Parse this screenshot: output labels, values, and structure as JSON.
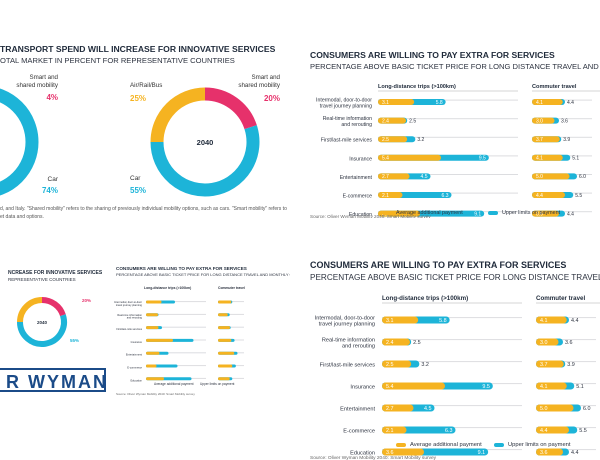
{
  "colors": {
    "orange": "#f5b321",
    "cyan": "#1db4d8",
    "pink": "#e6316b",
    "track": "#dcdde0",
    "navy": "#1b4b88"
  },
  "left_top": {
    "title": "TRANSPORT SPEND WILL INCREASE FOR INNOVATIVE SERVICES",
    "subtitle": "OTAL MARKET IN PERCENT FOR REPRESENTATIVE COUNTRIES",
    "donut1": {
      "label_a": "Smart and",
      "label_b": "shared mobility",
      "smart_value": "4%",
      "car_label": "Car",
      "car_value": "74%"
    },
    "donut2": {
      "center": "2040",
      "bus_label": "Air/Rail/Bus",
      "bus_value": "25%",
      "label_a": "Smart and",
      "label_b": "shared mobility",
      "smart_value": "20%",
      "car_label": "Car",
      "car_value": "55%"
    },
    "footnote_1": "d, and Italy. \"Shared mobility\" refers to the sharing of previously individual mobility options, such as cars. \"Smart mobility\" refers to",
    "footnote_2": "et data and options."
  },
  "left_bottom": {
    "title": "NCREASE FOR INNOVATIVE SERVICES",
    "subtitle": "REPRESENTATIVE COUNTRIES",
    "center": "2040",
    "small_pct_1": "20%",
    "small_pct_2": "55%",
    "logo": "R WYMAN",
    "mini_title": "CONSUMERS ARE WILLING TO PAY EXTRA FOR SERVICES",
    "mini_subtitle": "PERCENTAGE ABOVE BASIC TICKET PRICE FOR LONG DISTANCE TRAVEL AND MONTHLY COMMUTIN",
    "mini_col1": "Long-distance trips (>100km)",
    "mini_col2": "Commuter travel",
    "mini_legend_1": "Average additional payment",
    "mini_legend_2": "Upper limits on payment",
    "mini_source": "Source: Oliver Wyman Mobility 2040: Smart Mobility survey"
  },
  "right_top": {
    "title": "CONSUMERS ARE WILLING TO PAY EXTRA FOR SERVICES",
    "subtitle": "PERCENTAGE ABOVE BASIC TICKET PRICE FOR LONG DISTANCE TRAVEL AND MO",
    "legend_1": "Average additional payment",
    "legend_2": "Upper limits on payment",
    "source": "Source: Oliver Wyman Mobility 2040: Smart Mobility survey"
  },
  "right_bottom": {
    "title": "CONSUMERS ARE WILLING TO PAY EXTRA FOR SERVICES",
    "subtitle": "PERCENTAGE ABOVE BASIC TICKET PRICE FOR LONG DISTANCE TRAVEL AND M",
    "legend_1": "Average additional payment",
    "legend_2": "Upper limits on payment",
    "source": "Source: Oliver Wyman Mobility 2040: Smart Mobility survey"
  },
  "chart_data": [
    {
      "type": "bar",
      "title": "CONSUMERS ARE WILLING TO PAY EXTRA FOR SERVICES",
      "subtitle": "PERCENTAGE ABOVE BASIC TICKET PRICE FOR LONG DISTANCE TRAVEL AND MO",
      "group_title": "Long-distance trips (>100km)",
      "categories": [
        "Intermodal, door-to-door travel journey planning",
        "Real-time information and rerouting",
        "First/last-mile services",
        "Insurance",
        "Entertainment",
        "E-commerce",
        "Education"
      ],
      "series": [
        {
          "name": "Average additional payment",
          "values": [
            3.1,
            2.4,
            2.5,
            5.4,
            2.7,
            2.1,
            3.6
          ]
        },
        {
          "name": "Upper limits on payment",
          "values": [
            5.8,
            2.5,
            3.2,
            9.5,
            4.5,
            6.3,
            9.1
          ]
        }
      ],
      "xlim": [
        0,
        12
      ]
    },
    {
      "type": "bar",
      "group_title": "Commuter travel",
      "categories": [
        "Intermodal, door-to-door travel journey planning",
        "Real-time information and rerouting",
        "First/last-mile services",
        "Insurance",
        "Entertainment",
        "E-commerce",
        "Education"
      ],
      "series": [
        {
          "name": "Average additional payment",
          "values": [
            4.1,
            3.0,
            3.7,
            4.1,
            5.0,
            4.4,
            3.6
          ]
        },
        {
          "name": "Upper limits on payment",
          "values": [
            4.4,
            3.6,
            3.9,
            5.1,
            6.0,
            5.5,
            4.4
          ]
        }
      ],
      "xlim": [
        0,
        8
      ]
    },
    {
      "type": "pie",
      "categories": [
        "Car",
        "Air/Rail/Bus",
        "Smart and shared mobility"
      ],
      "values": [
        55,
        25,
        20
      ]
    }
  ]
}
